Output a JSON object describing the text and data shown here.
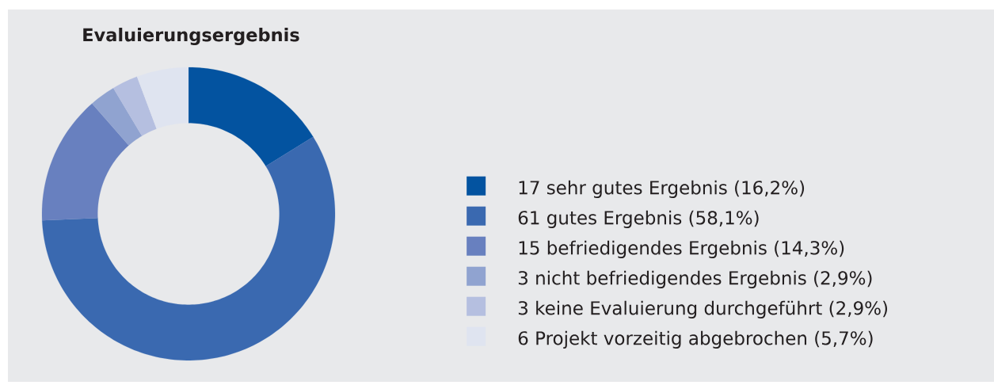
{
  "chart_data": {
    "type": "donut",
    "title": "Evaluierungsergebnis",
    "categories": [
      "17 sehr gutes Ergebnis (16,2%)",
      "61 gutes Ergebnis (58,1%)",
      "15 befriedigendes Ergebnis (14,3%)",
      "3 nicht befriedigendes Ergebnis (2,9%)",
      "3 keine Evaluierung durchgeführt (2,9%)",
      "6 Projekt vorzeitig abgebrochen (5,7%)"
    ],
    "values": [
      17,
      61,
      15,
      3,
      3,
      6
    ],
    "colors": [
      "#0353a0",
      "#3a69b0",
      "#6880bf",
      "#90a3d0",
      "#b5bfe0",
      "#dfe4f0"
    ],
    "legend": "right"
  }
}
